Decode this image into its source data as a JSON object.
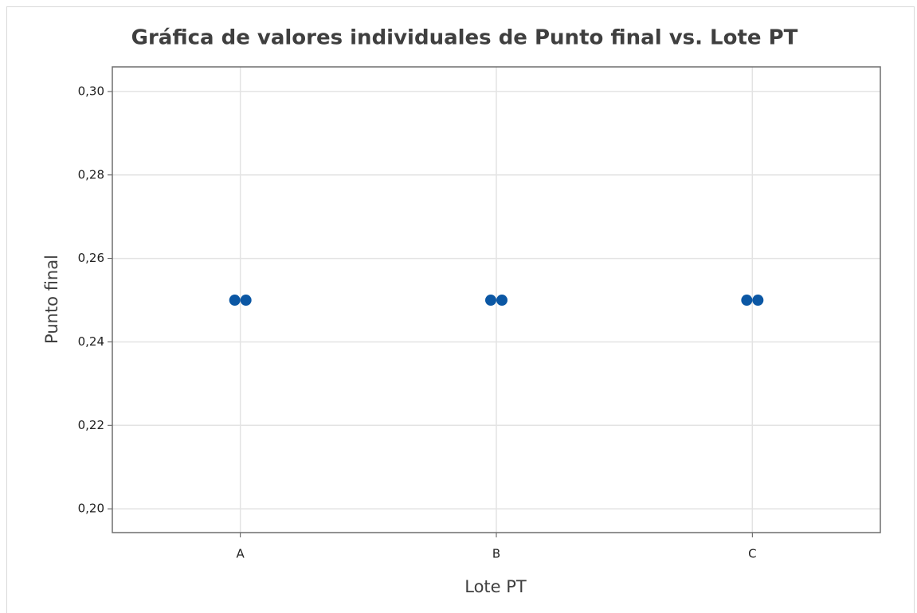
{
  "chart_data": {
    "type": "individual_value",
    "title": "Gráfica de valores individuales de Punto final vs. Lote PT",
    "x_label": "Lote PT",
    "y_label": "Punto final",
    "categories": [
      "A",
      "B",
      "C"
    ],
    "values": [
      [
        0.25,
        0.25
      ],
      [
        0.25,
        0.25
      ],
      [
        0.25,
        0.25
      ]
    ],
    "color": "#0b57a4",
    "ylim": [
      0.1943,
      0.3059
    ],
    "yticks": [
      {
        "value": 0.2,
        "label": "0,20"
      },
      {
        "value": 0.22,
        "label": "0,22"
      },
      {
        "value": 0.24,
        "label": "0,24"
      },
      {
        "value": 0.26,
        "label": "0,26"
      },
      {
        "value": 0.28,
        "label": "0,28"
      },
      {
        "value": 0.3,
        "label": "0,30"
      }
    ],
    "grid": true
  }
}
